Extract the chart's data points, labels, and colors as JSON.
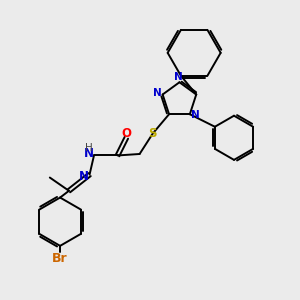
{
  "background_color": "#ebebeb",
  "bond_color": "#000000",
  "N_color": "#0000cc",
  "O_color": "#ff0000",
  "S_color": "#bbaa00",
  "Br_color": "#cc6600",
  "H_color": "#444444",
  "figsize": [
    3.0,
    3.0
  ],
  "dpi": 100,
  "xlim": [
    0,
    10
  ],
  "ylim": [
    0,
    10
  ]
}
